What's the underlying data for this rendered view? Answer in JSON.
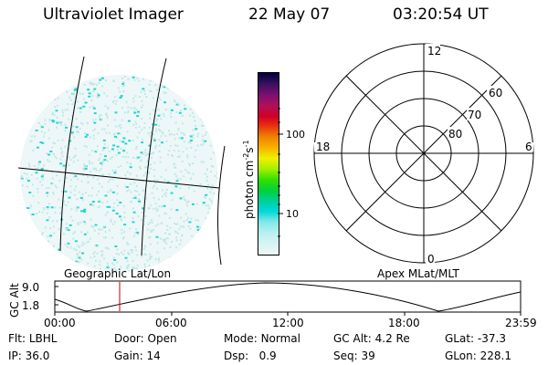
{
  "header": {
    "title": "Ultraviolet Imager",
    "date": "22 May 07",
    "time": "03:20:54 UT"
  },
  "colorbar": {
    "unit_label": "photon cm",
    "unit_sup1": "-2",
    "unit_mid": "s",
    "unit_sup2": "-1",
    "ticks": [
      "100",
      "10"
    ],
    "colors": [
      "#000040",
      "#3a1060",
      "#7a1070",
      "#b0105a",
      "#d00028",
      "#e83010",
      "#f08000",
      "#f8b000",
      "#f0f000",
      "#a0f000",
      "#30e000",
      "#00d040",
      "#00d0a0",
      "#00d8d8",
      "#80e8e8",
      "#b8f0f0",
      "#d8f4f4",
      "#eef6f6"
    ]
  },
  "polar": {
    "labels": {
      "top": "12",
      "bottom": "0",
      "left": "18",
      "right": "6"
    },
    "lat_labels": [
      "60",
      "70",
      "80"
    ]
  },
  "panel_labels": {
    "left": "Geographic Lat/Lon",
    "right": "Apex MLat/MLT"
  },
  "altitude_plot": {
    "axis_label": "GC Alt",
    "y_ticks": [
      "9.0",
      "1.8"
    ],
    "x_ticks": [
      "00:00",
      "06:00",
      "12:00",
      "18:00",
      "23:59"
    ],
    "marker_time": "03:20:54"
  },
  "info": {
    "flt_label": "Flt:",
    "flt_value": "LBHL",
    "ip_label": "IP:",
    "ip_value": "36.0",
    "door_label": "Door:",
    "door_value": "Open",
    "gain_label": "Gain:",
    "gain_value": "14",
    "mode_label": "Mode:",
    "mode_value": "Normal",
    "dsp_label": "Dsp:",
    "dsp_value": "0.9",
    "gcalt_label": "GC Alt:",
    "gcalt_value": "4.2 Re",
    "seq_label": "Seq:",
    "seq_value": "39",
    "glat_label": "GLat:",
    "glat_value": "-37.3",
    "glon_label": "GLon:",
    "glon_value": "228.1"
  },
  "colors": {
    "speckle_cyan": "#20d8d0",
    "speckle_light": "#bfe8e8",
    "marker": "#c00000"
  }
}
